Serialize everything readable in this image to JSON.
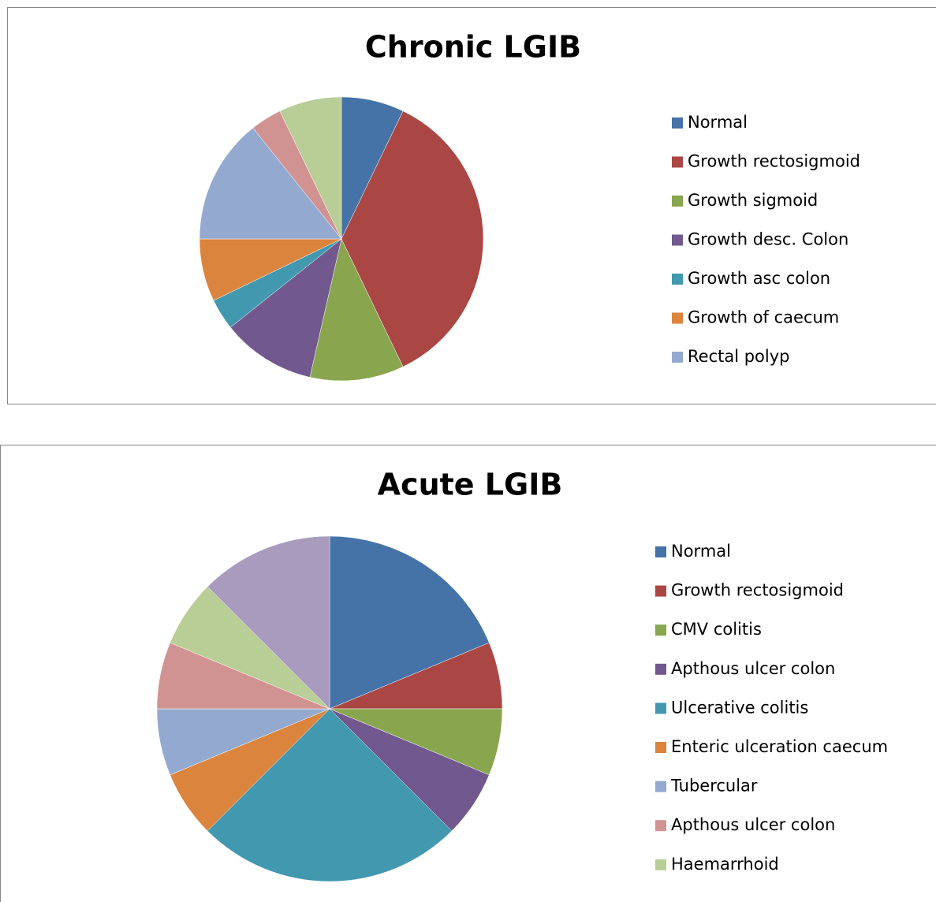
{
  "chart_data": [
    {
      "type": "pie",
      "title": "Chronic LGIB",
      "categories": [
        "Normal",
        "Growth rectosigmoid",
        "Growth sigmoid",
        "Growth desc. Colon",
        "Growth asc colon",
        "Growth of caecum",
        "Rectal polyp",
        null,
        null
      ],
      "values": [
        2,
        10,
        3,
        3,
        1,
        2,
        4,
        1,
        2
      ],
      "colors": [
        "#4572a7",
        "#aa4643",
        "#89a54e",
        "#71588f",
        "#4198af",
        "#db843d",
        "#93a9cf",
        "#d19392",
        "#b9cd96"
      ]
    },
    {
      "type": "pie",
      "title": "Acute LGIB",
      "categories": [
        "Normal",
        "Growth rectosigmoid",
        "CMV colitis",
        "Apthous ulcer colon",
        "Ulcerative colitis",
        "Enteric ulceration caecum",
        "Tubercular",
        "Apthous ulcer colon",
        "Haemarrhoid",
        null
      ],
      "values": [
        3,
        1,
        1,
        1,
        4,
        1,
        1,
        1,
        1,
        2
      ],
      "colors": [
        "#4572a7",
        "#aa4643",
        "#89a54e",
        "#71588f",
        "#4198af",
        "#db843d",
        "#93a9cf",
        "#d19392",
        "#b9cd96",
        "#a99bbd"
      ]
    }
  ]
}
